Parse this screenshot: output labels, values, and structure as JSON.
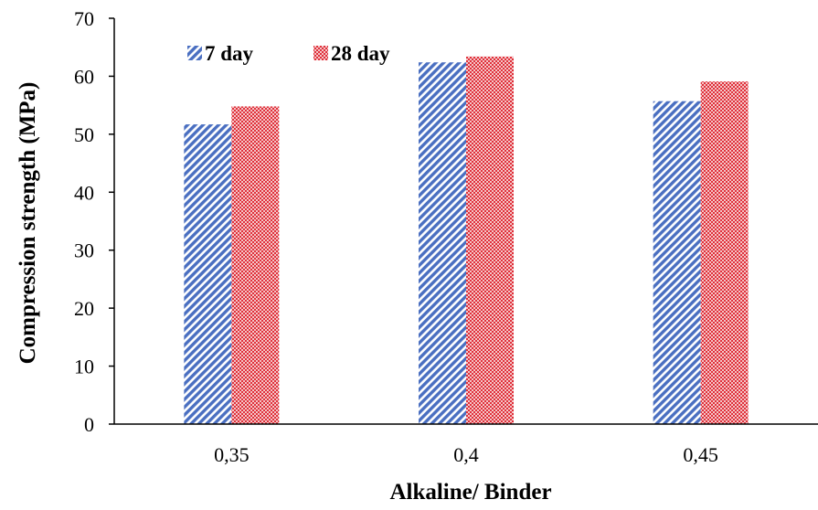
{
  "chart_data": {
    "type": "bar",
    "categories": [
      "0,35",
      "0,4",
      "0,45"
    ],
    "series": [
      {
        "name": "7 day",
        "values": [
          51.7,
          62.4,
          55.7
        ],
        "color": "#4a6fc1",
        "pattern": "diagonal-stripes"
      },
      {
        "name": "28 day",
        "values": [
          54.8,
          63.4,
          59.1
        ],
        "color": "#e0303a",
        "pattern": "checker"
      }
    ],
    "xlabel": "Alkaline/ Binder",
    "ylabel": "Compression strength (MPa)",
    "ylim": [
      0,
      70
    ],
    "yticks": [
      "0",
      "10",
      "20",
      "30",
      "40",
      "50",
      "60",
      "70"
    ],
    "grid": false,
    "legend_position": "top-left"
  }
}
